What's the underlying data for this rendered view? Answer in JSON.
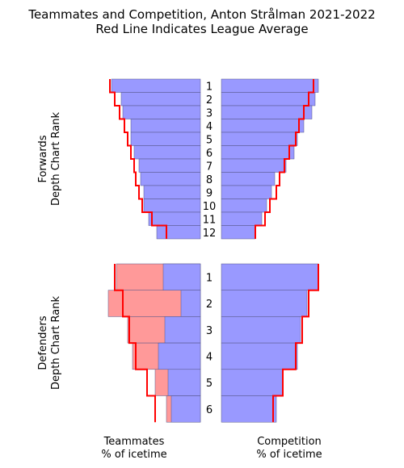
{
  "chart_data": {
    "type": "bar",
    "title_line1": "Teammates and Competition, Anton Strålman 2021-2022",
    "title_line2": "Red Line Indicates League Average",
    "panels": [
      {
        "group": "forwards",
        "ylabel_line1": "Forwards",
        "ylabel_line2": "Depth Chart Rank",
        "ranks": [
          "1",
          "2",
          "3",
          "4",
          "5",
          "6",
          "7",
          "8",
          "9",
          "10",
          "11",
          "12"
        ],
        "teammates": {
          "blue": [
            0.55,
            0.49,
            0.48,
            0.43,
            0.43,
            0.41,
            0.38,
            0.37,
            0.35,
            0.35,
            0.32,
            0.27
          ],
          "pink": [
            0,
            0,
            0,
            0,
            0,
            0,
            0,
            0,
            0,
            0,
            0,
            0
          ],
          "league_average": [
            0.56,
            0.53,
            0.5,
            0.47,
            0.45,
            0.43,
            0.41,
            0.4,
            0.38,
            0.36,
            0.3,
            0.21
          ]
        },
        "competition": {
          "blue": [
            0.6,
            0.58,
            0.56,
            0.51,
            0.47,
            0.45,
            0.4,
            0.33,
            0.31,
            0.28,
            0.25,
            0.21
          ],
          "league_average": [
            0.57,
            0.54,
            0.51,
            0.48,
            0.46,
            0.42,
            0.39,
            0.36,
            0.34,
            0.3,
            0.27,
            0.21
          ]
        }
      },
      {
        "group": "defenders",
        "ylabel_line1": "Defenders",
        "ylabel_line2": "Depth Chart Rank",
        "ranks": [
          "1",
          "2",
          "3",
          "4",
          "5",
          "6"
        ],
        "teammates": {
          "blue": [
            0.23,
            0.12,
            0.22,
            0.26,
            0.2,
            0.18
          ],
          "pink": [
            0.52,
            0.57,
            0.45,
            0.42,
            0.28,
            0.21
          ],
          "league_average": [
            0.53,
            0.48,
            0.44,
            0.4,
            0.33,
            0.28
          ]
        },
        "competition": {
          "blue": [
            0.6,
            0.53,
            0.49,
            0.47,
            0.38,
            0.34
          ],
          "league_average": [
            0.6,
            0.54,
            0.5,
            0.46,
            0.38,
            0.32
          ]
        }
      }
    ],
    "xlabel_left_line1": "Teammates",
    "xlabel_left_line2": "% of icetime",
    "xlabel_right_line1": "Competition",
    "xlabel_right_line2": "% of icetime",
    "colors": {
      "blue": "#9999ff",
      "pink": "#ff9999",
      "league_line": "#ff0000",
      "bar_edge": "#555588"
    }
  }
}
